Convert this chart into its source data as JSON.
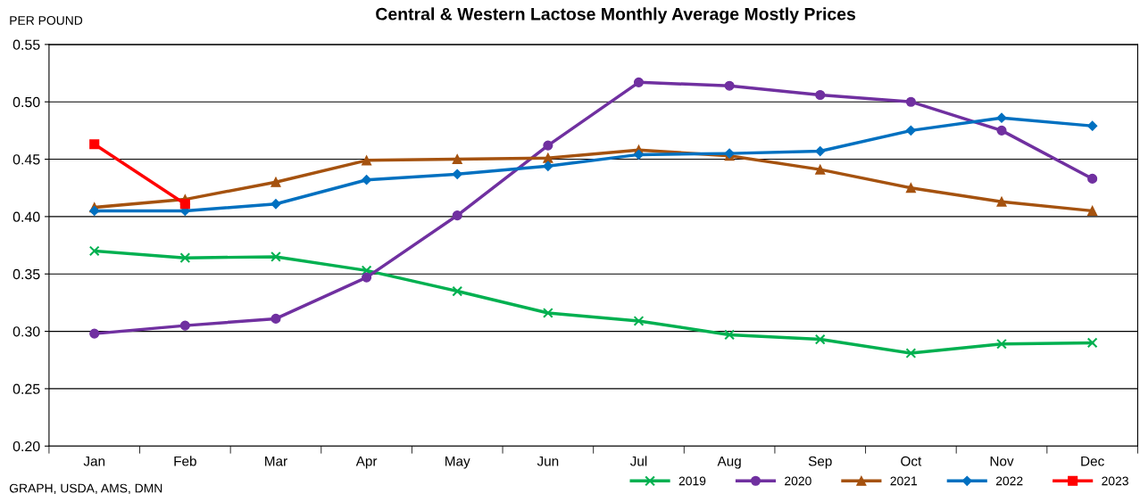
{
  "chart_data": {
    "type": "line",
    "title": "Central & Western Lactose Monthly Average Mostly Prices",
    "ylabel": "PER POUND",
    "annotations": [
      "GRAPH, USDA, AMS, DMN"
    ],
    "categories": [
      "Jan",
      "Feb",
      "Mar",
      "Apr",
      "May",
      "Jun",
      "Jul",
      "Aug",
      "Sep",
      "Oct",
      "Nov",
      "Dec"
    ],
    "series": [
      {
        "name": "2019",
        "color": "#00b050",
        "marker": "cross",
        "values": [
          0.37,
          0.364,
          0.365,
          0.353,
          0.335,
          0.316,
          0.309,
          0.297,
          0.293,
          0.281,
          0.289,
          0.29
        ]
      },
      {
        "name": "2020",
        "color": "#7030a0",
        "marker": "circle",
        "values": [
          0.298,
          0.305,
          0.311,
          0.347,
          0.401,
          0.462,
          0.517,
          0.514,
          0.506,
          0.5,
          0.475,
          0.433
        ]
      },
      {
        "name": "2021",
        "color": "#a5520f",
        "marker": "triangle",
        "values": [
          0.408,
          0.415,
          0.43,
          0.449,
          0.45,
          0.451,
          0.458,
          0.453,
          0.441,
          0.425,
          0.413,
          0.405
        ]
      },
      {
        "name": "2022",
        "color": "#0070c0",
        "marker": "diamond",
        "values": [
          0.405,
          0.405,
          0.411,
          0.432,
          0.437,
          0.444,
          0.454,
          0.455,
          0.457,
          0.475,
          0.486,
          0.479
        ]
      },
      {
        "name": "2023",
        "color": "#ff0000",
        "marker": "square",
        "values": [
          0.463,
          0.411,
          null,
          null,
          null,
          null,
          null,
          null,
          null,
          null,
          null,
          null
        ]
      }
    ],
    "ylim": [
      0.2,
      0.55
    ],
    "yticks": [
      {
        "value": 0.2,
        "label": "0.20"
      },
      {
        "value": 0.25,
        "label": "0.25"
      },
      {
        "value": 0.3,
        "label": "0.30"
      },
      {
        "value": 0.35,
        "label": "0.35"
      },
      {
        "value": 0.4,
        "label": "0.40"
      },
      {
        "value": 0.45,
        "label": "0.45"
      },
      {
        "value": 0.5,
        "label": "0.50"
      },
      {
        "value": 0.55,
        "label": "0.55"
      }
    ],
    "grid": "y",
    "legend": "bottom right",
    "line_style": "solid"
  }
}
